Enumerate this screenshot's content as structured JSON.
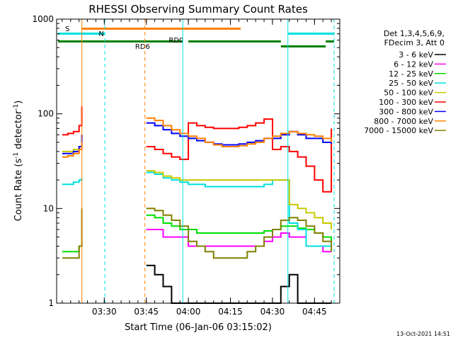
{
  "chart_data": {
    "type": "line",
    "title": "RHESSI Observing Summary Count Rates",
    "xlabel": "Start Time (06-Jan-06 03:15:02)",
    "ylabel_main": "Count Rate (s",
    "ylabel_sup1": "-1",
    "ylabel_mid": " detector",
    "ylabel_sup2": "-1",
    "ylabel_end": ")",
    "y_scale": "log",
    "ylim": [
      1,
      1000
    ],
    "xlim_minutes_after_0315": [
      -2,
      99
    ],
    "x_ticks": [
      {
        "label": "03:30",
        "minute": 15
      },
      {
        "label": "03:45",
        "minute": 30
      },
      {
        "label": "04:00",
        "minute": 45
      },
      {
        "label": "04:15",
        "minute": 60
      },
      {
        "label": "04:30",
        "minute": 75
      },
      {
        "label": "04:45",
        "minute": 90
      }
    ],
    "y_ticks": [
      {
        "label": "1",
        "value": 1
      },
      {
        "label": "10",
        "value": 10
      },
      {
        "label": "100",
        "value": 100
      },
      {
        "label": "1000",
        "value": 1000
      }
    ],
    "legend_header": [
      "Det 1,3,4,5,6,9,",
      "FDecim 3, Att 0"
    ],
    "legend_position": "right",
    "timestamp": "13-Oct-2021 14:51",
    "flags": [
      {
        "label": "S",
        "color": "#ff8000"
      },
      {
        "label": "N",
        "color": "#00e0e0"
      },
      {
        "label": "RD0",
        "color": "#008000"
      },
      {
        "label": "RD6",
        "color": "#008000"
      }
    ],
    "vertical_markers": [
      {
        "minute": 7.0,
        "color": "#ff8000",
        "style": "solid"
      },
      {
        "minute": 15.2,
        "color": "#00e0e0",
        "style": "dashed"
      },
      {
        "minute": 29.5,
        "color": "#ff8000",
        "style": "dashed"
      },
      {
        "minute": 43.0,
        "color": "#00e0e0",
        "style": "solid"
      },
      {
        "minute": 80.5,
        "color": "#00e0e0",
        "style": "solid"
      },
      {
        "minute": 97.0,
        "color": "#00e0e0",
        "style": "dashed"
      }
    ],
    "gaps": [
      [
        7.0,
        29.5
      ],
      [
        96.5,
        99
      ]
    ],
    "x_minutes": [
      0,
      2,
      4,
      6,
      7,
      30,
      33,
      36,
      39,
      42,
      45,
      48,
      51,
      54,
      57,
      60,
      63,
      66,
      69,
      72,
      75,
      78,
      81,
      84,
      87,
      90,
      93,
      96
    ],
    "series": [
      {
        "name": "3 - 6 keV",
        "color": "#000000",
        "values": [
          null,
          null,
          null,
          null,
          null,
          2.5,
          2.0,
          1.5,
          1.0,
          1.0,
          1.0,
          1.0,
          1.0,
          1.0,
          1.0,
          1.0,
          1.0,
          1.0,
          1.0,
          1.0,
          1.0,
          1.5,
          2.0,
          1.0,
          1.0,
          1.0,
          1.0,
          1.0
        ]
      },
      {
        "name": "6 - 12 keV",
        "color": "#ff00ff",
        "values": [
          null,
          null,
          null,
          null,
          null,
          6.0,
          6.0,
          5.0,
          5.0,
          5.0,
          4.0,
          4.0,
          4.0,
          4.0,
          4.0,
          4.0,
          4.0,
          4.0,
          4.0,
          4.5,
          5.0,
          5.5,
          5.0,
          5.0,
          4.0,
          4.0,
          3.5,
          3.5
        ]
      },
      {
        "name": "12 - 25 keV",
        "color": "#00dd00",
        "values": [
          3.5,
          3.5,
          3.5,
          4.0,
          4.5,
          8.5,
          8.0,
          7.0,
          6.5,
          6.0,
          6.0,
          5.5,
          5.5,
          5.5,
          5.5,
          5.5,
          5.5,
          5.5,
          5.5,
          5.8,
          6.0,
          6.5,
          6.5,
          6.2,
          6.0,
          5.5,
          5.0,
          4.5
        ]
      },
      {
        "name": "25 - 50 keV",
        "color": "#00e0e0",
        "values": [
          18,
          18,
          19,
          20,
          21,
          24,
          23,
          21,
          20,
          19,
          18,
          18,
          17,
          17,
          17,
          17,
          17,
          17,
          17,
          18,
          20,
          20,
          7,
          6,
          4,
          4,
          4,
          4
        ]
      },
      {
        "name": "50 - 100 keV",
        "color": "#c8c800",
        "values": [
          40,
          40,
          42,
          45,
          48,
          25,
          24,
          22,
          21,
          20,
          20,
          20,
          20,
          20,
          20,
          20,
          20,
          20,
          20,
          20,
          20,
          20,
          11,
          10,
          9,
          8,
          7,
          6
        ]
      },
      {
        "name": "100 - 300 keV",
        "color": "#ff0000",
        "values": [
          60,
          62,
          65,
          75,
          120,
          45,
          42,
          38,
          35,
          33,
          80,
          75,
          72,
          70,
          70,
          70,
          72,
          75,
          80,
          88,
          42,
          45,
          40,
          35,
          28,
          20,
          15,
          70
        ]
      },
      {
        "name": "300 - 800 keV",
        "color": "#0000ff",
        "values": [
          38,
          38,
          40,
          45,
          60,
          80,
          75,
          68,
          62,
          58,
          55,
          52,
          50,
          48,
          47,
          47,
          48,
          50,
          52,
          55,
          55,
          60,
          65,
          60,
          55,
          55,
          50,
          48
        ]
      },
      {
        "name": "800 - 7000 keV",
        "color": "#ff8000",
        "values": [
          35,
          36,
          38,
          42,
          50,
          90,
          85,
          75,
          68,
          62,
          58,
          55,
          50,
          47,
          45,
          45,
          46,
          48,
          50,
          55,
          58,
          62,
          65,
          62,
          60,
          58,
          55,
          50
        ]
      },
      {
        "name": "7000 - 15000 keV",
        "color": "#808000",
        "values": [
          3.0,
          3.0,
          3.0,
          4.0,
          10,
          10,
          9.5,
          8.5,
          7.5,
          6.5,
          4.5,
          4.0,
          3.5,
          3.0,
          3.0,
          3.0,
          3.0,
          3.5,
          4.0,
          5.0,
          6.0,
          7.5,
          8.0,
          7.5,
          6.5,
          5.5,
          4.5,
          3.5
        ]
      }
    ]
  }
}
